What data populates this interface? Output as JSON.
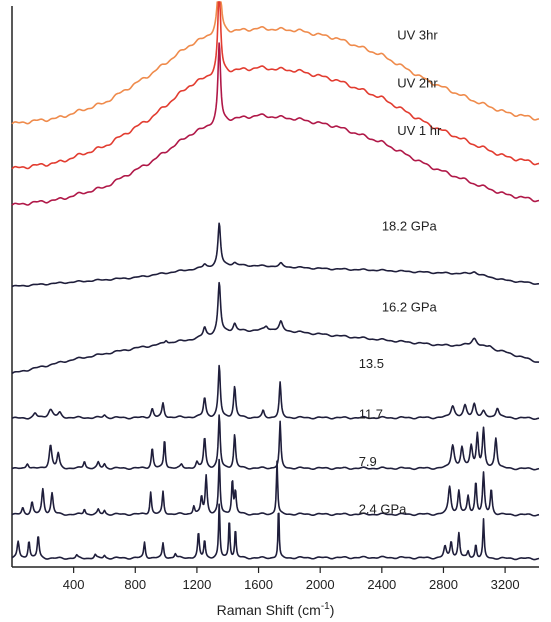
{
  "chart_data": {
    "type": "line",
    "title": "",
    "xlabel_main": "Raman Shift (cm",
    "xlabel_sup": "-1",
    "xlabel_end": ")",
    "ylabel": "",
    "xlim": [
      0,
      3420
    ],
    "x_ticks": [
      400,
      800,
      1200,
      1600,
      2000,
      2400,
      2800,
      3200
    ],
    "x_tick_labels": [
      "400",
      "800",
      "1200",
      "1600",
      "2000",
      "2400",
      "2800",
      "3200"
    ],
    "grid": false,
    "legend": "inline labels",
    "series": [
      {
        "name": "UV 3hr",
        "color": "#ef8b4c",
        "baseline": 0.79,
        "scale": 0.17,
        "text_color": "#ef8b4c",
        "curve": [
          [
            0,
            0
          ],
          [
            300,
            0.06
          ],
          [
            600,
            0.22
          ],
          [
            900,
            0.52
          ],
          [
            1150,
            0.82
          ],
          [
            1330,
            0.96
          ],
          [
            1450,
            0.97
          ],
          [
            1600,
            1.0
          ],
          [
            1850,
            0.98
          ],
          [
            2100,
            0.9
          ],
          [
            2400,
            0.72
          ],
          [
            2700,
            0.45
          ],
          [
            3000,
            0.24
          ],
          [
            3200,
            0.12
          ],
          [
            3420,
            0.05
          ]
        ],
        "peaks": [
          [
            1345,
            0.88,
            10
          ]
        ]
      },
      {
        "name": "UV 2hr",
        "color": "#e23c30",
        "baseline": 0.71,
        "scale": 0.18,
        "text_color": "#e23c30",
        "curve": [
          [
            0,
            0
          ],
          [
            300,
            0.06
          ],
          [
            600,
            0.22
          ],
          [
            900,
            0.5
          ],
          [
            1150,
            0.82
          ],
          [
            1330,
            0.95
          ],
          [
            1450,
            0.97
          ],
          [
            1600,
            1.0
          ],
          [
            1850,
            0.97
          ],
          [
            2100,
            0.88
          ],
          [
            2400,
            0.7
          ],
          [
            2700,
            0.44
          ],
          [
            3000,
            0.24
          ],
          [
            3200,
            0.12
          ],
          [
            3420,
            0.05
          ]
        ],
        "peaks": [
          [
            1345,
            0.88,
            10
          ]
        ]
      },
      {
        "name": "UV 1 hr",
        "color": "#b01848",
        "baseline": 0.645,
        "scale": 0.16,
        "text_color": "#b01848",
        "curve": [
          [
            0,
            0
          ],
          [
            300,
            0.06
          ],
          [
            600,
            0.2
          ],
          [
            900,
            0.48
          ],
          [
            1150,
            0.78
          ],
          [
            1330,
            0.92
          ],
          [
            1450,
            0.96
          ],
          [
            1600,
            1.0
          ],
          [
            1850,
            0.96
          ],
          [
            2100,
            0.88
          ],
          [
            2400,
            0.7
          ],
          [
            2700,
            0.44
          ],
          [
            3000,
            0.24
          ],
          [
            3200,
            0.12
          ],
          [
            3420,
            0.05
          ]
        ],
        "peaks": [
          [
            1345,
            0.88,
            10
          ]
        ]
      },
      {
        "name": "18.2 GPa",
        "color": "#1f1e3b",
        "baseline": 0.5,
        "scale": 0.08,
        "text_color": "#222222",
        "curve": [
          [
            0,
            0
          ],
          [
            400,
            0.1
          ],
          [
            800,
            0.2
          ],
          [
            1100,
            0.35
          ],
          [
            1400,
            0.48
          ],
          [
            1700,
            0.45
          ],
          [
            2000,
            0.4
          ],
          [
            2400,
            0.36
          ],
          [
            2800,
            0.3
          ],
          [
            3000,
            0.28
          ],
          [
            3200,
            0.14
          ],
          [
            3420,
            0.06
          ]
        ],
        "peaks": [
          [
            1250,
            0.08,
            12
          ],
          [
            1345,
            0.95,
            10
          ],
          [
            1445,
            0.05,
            12
          ],
          [
            1745,
            0.07,
            12
          ],
          [
            3000,
            0.05,
            20
          ]
        ]
      },
      {
        "name": "16.2 GPa",
        "color": "#1f1e3b",
        "baseline": 0.345,
        "scale": 0.1,
        "text_color": "#222222",
        "curve": [
          [
            0,
            0
          ],
          [
            400,
            0.25
          ],
          [
            800,
            0.45
          ],
          [
            1200,
            0.62
          ],
          [
            1400,
            0.75
          ],
          [
            1700,
            0.78
          ],
          [
            2000,
            0.7
          ],
          [
            2400,
            0.6
          ],
          [
            2800,
            0.5
          ],
          [
            3000,
            0.5
          ],
          [
            3200,
            0.38
          ],
          [
            3420,
            0.2
          ]
        ],
        "peaks": [
          [
            1000,
            0.06,
            10
          ],
          [
            1250,
            0.17,
            11
          ],
          [
            1345,
            0.9,
            10
          ],
          [
            1445,
            0.13,
            11
          ],
          [
            1650,
            0.07,
            12
          ],
          [
            1745,
            0.15,
            12
          ],
          [
            3000,
            0.13,
            20
          ],
          [
            3100,
            0.05,
            18
          ]
        ]
      },
      {
        "name": "13.5",
        "color": "#1f1e3b",
        "baseline": 0.265,
        "scale": 0.1,
        "text_color": "#222222",
        "curve": [
          [
            0,
            0
          ],
          [
            400,
            0.01
          ],
          [
            800,
            0.01
          ],
          [
            1200,
            0.02
          ],
          [
            1600,
            0.01
          ],
          [
            2000,
            0.01
          ],
          [
            2400,
            0.01
          ],
          [
            2800,
            0.01
          ],
          [
            3200,
            0.01
          ],
          [
            3420,
            0.0
          ]
        ],
        "peaks": [
          [
            150,
            0.08,
            12
          ],
          [
            250,
            0.15,
            18
          ],
          [
            310,
            0.08,
            12
          ],
          [
            600,
            0.05,
            10
          ],
          [
            910,
            0.16,
            9
          ],
          [
            980,
            0.25,
            8
          ],
          [
            1250,
            0.35,
            9
          ],
          [
            1345,
            0.92,
            8
          ],
          [
            1445,
            0.55,
            8
          ],
          [
            1630,
            0.12,
            8
          ],
          [
            1740,
            0.62,
            7
          ],
          [
            2860,
            0.22,
            14
          ],
          [
            2940,
            0.2,
            12
          ],
          [
            3000,
            0.25,
            12
          ],
          [
            3060,
            0.1,
            12
          ],
          [
            3150,
            0.18,
            12
          ]
        ]
      },
      {
        "name": "11.7",
        "color": "#1f1e3b",
        "baseline": 0.175,
        "scale": 0.1,
        "text_color": "#222222",
        "curve": [
          [
            0,
            0
          ],
          [
            800,
            0.01
          ],
          [
            1600,
            0.01
          ],
          [
            2400,
            0.01
          ],
          [
            3420,
            0.0
          ]
        ],
        "peaks": [
          [
            100,
            0.1,
            10
          ],
          [
            250,
            0.42,
            10
          ],
          [
            300,
            0.26,
            9
          ],
          [
            470,
            0.13,
            8
          ],
          [
            560,
            0.1,
            8
          ],
          [
            600,
            0.08,
            8
          ],
          [
            910,
            0.36,
            7
          ],
          [
            990,
            0.52,
            6
          ],
          [
            1100,
            0.06,
            8
          ],
          [
            1200,
            0.1,
            8
          ],
          [
            1250,
            0.55,
            8
          ],
          [
            1345,
            0.95,
            7
          ],
          [
            1445,
            0.6,
            7
          ],
          [
            1740,
            0.82,
            6
          ],
          [
            2860,
            0.42,
            12
          ],
          [
            2920,
            0.36,
            10
          ],
          [
            2980,
            0.4,
            10
          ],
          [
            3020,
            0.6,
            8
          ],
          [
            3060,
            0.68,
            8
          ],
          [
            3140,
            0.55,
            9
          ]
        ]
      },
      {
        "name": "7.9",
        "color": "#1f1e3b",
        "baseline": 0.093,
        "scale": 0.1,
        "text_color": "#222222",
        "curve": [
          [
            0,
            0
          ],
          [
            800,
            0.01
          ],
          [
            1600,
            0.01
          ],
          [
            2400,
            0.01
          ],
          [
            3420,
            0.0
          ]
        ],
        "peaks": [
          [
            70,
            0.12,
            8
          ],
          [
            130,
            0.22,
            8
          ],
          [
            200,
            0.45,
            8
          ],
          [
            260,
            0.38,
            8
          ],
          [
            470,
            0.1,
            7
          ],
          [
            560,
            0.08,
            7
          ],
          [
            600,
            0.07,
            7
          ],
          [
            900,
            0.4,
            6
          ],
          [
            980,
            0.4,
            6
          ],
          [
            1180,
            0.15,
            7
          ],
          [
            1230,
            0.3,
            7
          ],
          [
            1260,
            0.68,
            7
          ],
          [
            1345,
            0.98,
            6
          ],
          [
            1430,
            0.62,
            6
          ],
          [
            1450,
            0.4,
            6
          ],
          [
            1720,
            0.95,
            5
          ],
          [
            2840,
            0.5,
            10
          ],
          [
            2900,
            0.42,
            8
          ],
          [
            2960,
            0.32,
            8
          ],
          [
            3010,
            0.58,
            7
          ],
          [
            3060,
            0.72,
            7
          ],
          [
            3110,
            0.45,
            7
          ]
        ]
      },
      {
        "name": "2.4 GPa",
        "color": "#1f1e3b",
        "baseline": 0.015,
        "scale": 0.1,
        "text_color": "#222222",
        "curve": [
          [
            0,
            0
          ],
          [
            800,
            0.01
          ],
          [
            1600,
            0.01
          ],
          [
            2400,
            0.02
          ],
          [
            2700,
            0.01
          ],
          [
            3420,
            0.0
          ]
        ],
        "peaks": [
          [
            40,
            0.3,
            8
          ],
          [
            110,
            0.32,
            7
          ],
          [
            170,
            0.4,
            7
          ],
          [
            420,
            0.05,
            7
          ],
          [
            540,
            0.06,
            7
          ],
          [
            600,
            0.05,
            7
          ],
          [
            860,
            0.28,
            6
          ],
          [
            980,
            0.26,
            6
          ],
          [
            1060,
            0.08,
            7
          ],
          [
            1210,
            0.45,
            6
          ],
          [
            1250,
            0.32,
            6
          ],
          [
            1345,
            0.98,
            5
          ],
          [
            1410,
            0.72,
            5
          ],
          [
            1450,
            0.52,
            5
          ],
          [
            1730,
            0.98,
            4
          ],
          [
            2810,
            0.2,
            9
          ],
          [
            2850,
            0.3,
            8
          ],
          [
            2900,
            0.45,
            7
          ],
          [
            2960,
            0.12,
            7
          ],
          [
            3010,
            0.25,
            6
          ],
          [
            3060,
            0.68,
            5
          ]
        ]
      }
    ],
    "labels": [
      {
        "series": "UV 3hr",
        "text": "UV 3hr",
        "x": 2500,
        "baseline_value": 0.94
      },
      {
        "series": "UV 2hr",
        "text": "UV 2hr",
        "x": 2500,
        "baseline_value": 0.855
      },
      {
        "series": "UV 1 hr",
        "text": "UV 1 hr",
        "x": 2500,
        "baseline_value": 0.77
      },
      {
        "series": "18.2 GPa",
        "text": "18.2 GPa",
        "x": 2400,
        "baseline_value": 0.6
      },
      {
        "series": "16.2 GPa",
        "text": "16.2 GPa",
        "x": 2400,
        "baseline_value": 0.455
      },
      {
        "series": "13.5",
        "text": "13.5",
        "x": 2250,
        "baseline_value": 0.355
      },
      {
        "series": "11.7",
        "text": "11.7",
        "x": 2250,
        "baseline_value": 0.265
      },
      {
        "series": "7.9",
        "text": "7.9",
        "x": 2250,
        "baseline_value": 0.18
      },
      {
        "series": "2.4 GPa",
        "text": "2.4 GPa",
        "x": 2250,
        "baseline_value": 0.095
      }
    ]
  }
}
